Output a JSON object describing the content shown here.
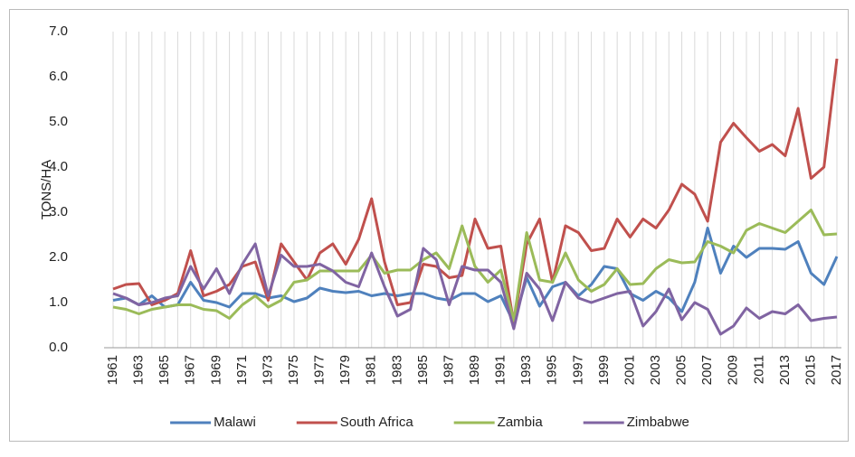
{
  "chart_data": {
    "type": "line",
    "y_label": "TONS/HA",
    "categories": [
      "1961",
      null,
      "1963",
      null,
      "1965",
      null,
      "1967",
      null,
      "1969",
      null,
      "1971",
      null,
      "1973",
      null,
      "1975",
      null,
      "1977",
      null,
      "1979",
      null,
      "1981",
      null,
      "1983",
      null,
      "1985",
      null,
      "1987",
      null,
      "1989",
      null,
      "1991",
      null,
      "1993",
      null,
      "1995",
      null,
      "1997",
      null,
      "1999",
      null,
      "2001",
      null,
      "2003",
      null,
      "2005",
      null,
      "2007",
      null,
      "2009",
      null,
      "2011",
      null,
      "2013",
      null,
      "2015",
      null,
      "2017"
    ],
    "series": [
      {
        "name": "Malawi",
        "color": "#4f81bd",
        "values": [
          1.05,
          1.1,
          0.95,
          1.15,
          0.9,
          0.95,
          1.45,
          1.05,
          1.0,
          0.9,
          1.2,
          1.2,
          1.1,
          1.15,
          1.02,
          1.1,
          1.32,
          1.25,
          1.22,
          1.25,
          1.15,
          1.2,
          1.15,
          1.2,
          1.2,
          1.1,
          1.05,
          1.2,
          1.2,
          1.02,
          1.15,
          0.55,
          1.55,
          0.92,
          1.35,
          1.45,
          1.15,
          1.4,
          1.8,
          1.75,
          1.2,
          1.05,
          1.25,
          1.1,
          0.8,
          1.45,
          2.65,
          1.65,
          2.25,
          2.0,
          2.2,
          2.2,
          2.18,
          2.35,
          1.65,
          1.4,
          2.02
        ]
      },
      {
        "name": "South Africa",
        "color": "#c0504d",
        "values": [
          1.3,
          1.4,
          1.42,
          0.95,
          1.05,
          1.2,
          2.15,
          1.15,
          1.25,
          1.4,
          1.8,
          1.9,
          1.05,
          2.3,
          1.9,
          1.5,
          2.1,
          2.3,
          1.85,
          2.4,
          3.3,
          1.9,
          0.95,
          1.0,
          1.85,
          1.8,
          1.55,
          1.6,
          2.85,
          2.2,
          2.25,
          0.55,
          2.3,
          2.85,
          1.45,
          2.7,
          2.55,
          2.15,
          2.2,
          2.85,
          2.45,
          2.85,
          2.65,
          3.05,
          3.62,
          3.4,
          2.8,
          4.55,
          4.97,
          4.65,
          4.35,
          4.5,
          4.25,
          5.3,
          3.75,
          4.0,
          6.4
        ]
      },
      {
        "name": "Zambia",
        "color": "#9bbb59",
        "values": [
          0.9,
          0.85,
          0.75,
          0.85,
          0.9,
          0.95,
          0.95,
          0.85,
          0.82,
          0.65,
          0.95,
          1.15,
          0.9,
          1.05,
          1.45,
          1.5,
          1.7,
          1.7,
          1.7,
          1.7,
          2.05,
          1.65,
          1.72,
          1.72,
          1.95,
          2.1,
          1.75,
          2.7,
          1.8,
          1.45,
          1.72,
          0.6,
          2.55,
          1.5,
          1.45,
          2.1,
          1.5,
          1.25,
          1.4,
          1.75,
          1.4,
          1.42,
          1.75,
          1.95,
          1.88,
          1.9,
          2.35,
          2.25,
          2.1,
          2.6,
          2.75,
          2.65,
          2.55,
          2.8,
          3.05,
          2.5,
          2.52
        ]
      },
      {
        "name": "Zimbabwe",
        "color": "#8064a2",
        "values": [
          1.2,
          1.1,
          0.95,
          1.0,
          1.1,
          1.15,
          1.8,
          1.3,
          1.75,
          1.2,
          1.85,
          2.3,
          1.15,
          2.05,
          1.8,
          1.8,
          1.85,
          1.7,
          1.45,
          1.35,
          2.1,
          1.35,
          0.7,
          0.85,
          2.2,
          1.95,
          0.95,
          1.8,
          1.72,
          1.72,
          1.45,
          0.42,
          1.65,
          1.3,
          0.6,
          1.45,
          1.1,
          1.0,
          1.1,
          1.2,
          1.25,
          0.48,
          0.8,
          1.3,
          0.62,
          1.0,
          0.85,
          0.3,
          0.48,
          0.88,
          0.65,
          0.8,
          0.75,
          0.95,
          0.6,
          0.65,
          0.68
        ]
      }
    ],
    "ylim": [
      0,
      7
    ],
    "yticks": [
      {
        "value": 0,
        "label": "0.0"
      },
      {
        "value": 1,
        "label": "1.0"
      },
      {
        "value": 2,
        "label": "2.0"
      },
      {
        "value": 3,
        "label": "3.0"
      },
      {
        "value": 4,
        "label": "4.0"
      },
      {
        "value": 5,
        "label": "5.0"
      },
      {
        "value": 6,
        "label": "6.0"
      },
      {
        "value": 7,
        "label": "7.0"
      }
    ],
    "grid": "x",
    "legend": "bottom"
  }
}
